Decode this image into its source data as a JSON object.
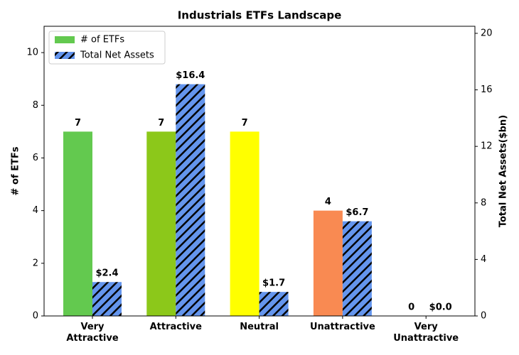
{
  "chart_data": {
    "type": "bar",
    "title": "Industrials ETFs Landscape",
    "categories": [
      "Very\nAttractive",
      "Attractive",
      "Neutral",
      "Unattractive",
      "Very\nUnattractive"
    ],
    "ylabel": "# of ETFs",
    "y2label": "Total Net Assets($bn)",
    "ylim": [
      0,
      11
    ],
    "yticks": [
      0,
      2,
      4,
      6,
      8,
      10
    ],
    "y2lim": [
      0,
      20.5
    ],
    "y2ticks": [
      0,
      4,
      8,
      12,
      16,
      20
    ],
    "legend": "upper left",
    "series": [
      {
        "name": "# of ETFs",
        "color": [
          "#63c94f",
          "#8cc81a",
          "#ffff00",
          "#f98a52",
          "#e04040"
        ],
        "values": [
          7,
          7,
          7,
          4,
          0
        ]
      },
      {
        "name": "Total Net Assets",
        "axis": "y2",
        "color": "#6495ed",
        "hatch": true,
        "values": [
          2.4,
          16.4,
          1.7,
          6.7,
          0.0
        ],
        "value_labels": [
          "$2.4",
          "$16.4",
          "$1.7",
          "$6.7",
          "$0.0"
        ]
      }
    ]
  }
}
